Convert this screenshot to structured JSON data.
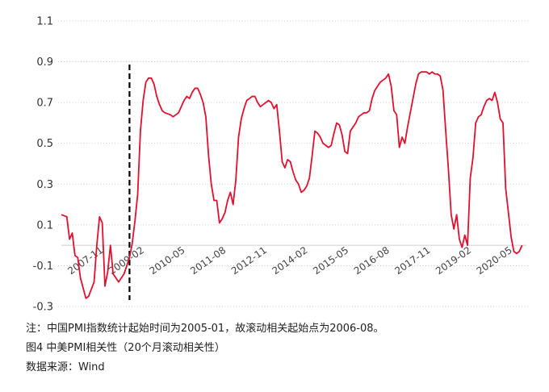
{
  "chart_data": {
    "type": "line",
    "y_ticks": [
      "1.1",
      "0.9",
      "0.7",
      "0.5",
      "0.3",
      "0.1",
      "-0.1",
      "-0.3"
    ],
    "ylim": [
      -0.3,
      1.1
    ],
    "x_ticks": [
      {
        "label": "2007-11",
        "date": "2007-11"
      },
      {
        "label": "2009-02",
        "date": "2009-02"
      },
      {
        "label": "2010-05",
        "date": "2010-05"
      },
      {
        "label": "2011-08",
        "date": "2011-08"
      },
      {
        "label": "2012-11",
        "date": "2012-11"
      },
      {
        "label": "2014-02",
        "date": "2014-02"
      },
      {
        "label": "2015-05",
        "date": "2015-05"
      },
      {
        "label": "2016-08",
        "date": "2016-08"
      },
      {
        "label": "2017-11",
        "date": "2017-11"
      },
      {
        "label": "2019-02",
        "date": "2019-02"
      },
      {
        "label": "2020-05",
        "date": "2020-05"
      }
    ],
    "xlim": [
      "2006-08",
      "2020-10"
    ],
    "grid": true,
    "marker_line_date": "2008-09",
    "series": [
      {
        "color": "#e0102f",
        "points": [
          [
            "2006-08",
            0.15
          ],
          [
            "2006-10",
            0.14
          ],
          [
            "2006-11",
            0.03
          ],
          [
            "2006-12",
            0.06
          ],
          [
            "2007-01",
            -0.05
          ],
          [
            "2007-02",
            -0.06
          ],
          [
            "2007-03",
            -0.16
          ],
          [
            "2007-05",
            -0.26
          ],
          [
            "2007-06",
            -0.25
          ],
          [
            "2007-08",
            -0.18
          ],
          [
            "2007-09",
            0.0
          ],
          [
            "2007-10",
            0.14
          ],
          [
            "2007-11",
            0.11
          ],
          [
            "2007-12",
            -0.2
          ],
          [
            "2008-01",
            -0.13
          ],
          [
            "2008-02",
            0.0
          ],
          [
            "2008-03",
            -0.14
          ],
          [
            "2008-05",
            -0.18
          ],
          [
            "2008-06",
            -0.16
          ],
          [
            "2008-07",
            -0.14
          ],
          [
            "2008-08",
            -0.1
          ],
          [
            "2008-09",
            -0.06
          ],
          [
            "2008-10",
            0.01
          ],
          [
            "2008-11",
            0.12
          ],
          [
            "2008-12",
            0.25
          ],
          [
            "2009-01",
            0.56
          ],
          [
            "2009-02",
            0.71
          ],
          [
            "2009-03",
            0.8
          ],
          [
            "2009-04",
            0.82
          ],
          [
            "2009-05",
            0.82
          ],
          [
            "2009-06",
            0.79
          ],
          [
            "2009-07",
            0.73
          ],
          [
            "2009-08",
            0.69
          ],
          [
            "2009-09",
            0.66
          ],
          [
            "2009-10",
            0.65
          ],
          [
            "2009-12",
            0.64
          ],
          [
            "2010-01",
            0.63
          ],
          [
            "2010-03",
            0.65
          ],
          [
            "2010-05",
            0.71
          ],
          [
            "2010-06",
            0.73
          ],
          [
            "2010-07",
            0.72
          ],
          [
            "2010-08",
            0.75
          ],
          [
            "2010-09",
            0.77
          ],
          [
            "2010-10",
            0.77
          ],
          [
            "2010-11",
            0.74
          ],
          [
            "2010-12",
            0.7
          ],
          [
            "2011-01",
            0.63
          ],
          [
            "2011-02",
            0.44
          ],
          [
            "2011-03",
            0.3
          ],
          [
            "2011-04",
            0.22
          ],
          [
            "2011-05",
            0.22
          ],
          [
            "2011-06",
            0.11
          ],
          [
            "2011-07",
            0.13
          ],
          [
            "2011-08",
            0.16
          ],
          [
            "2011-09",
            0.22
          ],
          [
            "2011-10",
            0.26
          ],
          [
            "2011-11",
            0.2
          ],
          [
            "2011-12",
            0.32
          ],
          [
            "2012-01",
            0.53
          ],
          [
            "2012-02",
            0.62
          ],
          [
            "2012-03",
            0.67
          ],
          [
            "2012-04",
            0.71
          ],
          [
            "2012-05",
            0.72
          ],
          [
            "2012-06",
            0.73
          ],
          [
            "2012-07",
            0.73
          ],
          [
            "2012-08",
            0.7
          ],
          [
            "2012-09",
            0.68
          ],
          [
            "2012-10",
            0.69
          ],
          [
            "2012-11",
            0.7
          ],
          [
            "2012-12",
            0.71
          ],
          [
            "2013-01",
            0.7
          ],
          [
            "2013-02",
            0.67
          ],
          [
            "2013-03",
            0.69
          ],
          [
            "2013-04",
            0.56
          ],
          [
            "2013-05",
            0.41
          ],
          [
            "2013-06",
            0.38
          ],
          [
            "2013-07",
            0.42
          ],
          [
            "2013-08",
            0.41
          ],
          [
            "2013-09",
            0.36
          ],
          [
            "2013-10",
            0.32
          ],
          [
            "2013-11",
            0.3
          ],
          [
            "2013-12",
            0.26
          ],
          [
            "2014-01",
            0.27
          ],
          [
            "2014-02",
            0.29
          ],
          [
            "2014-03",
            0.33
          ],
          [
            "2014-04",
            0.44
          ],
          [
            "2014-05",
            0.56
          ],
          [
            "2014-06",
            0.55
          ],
          [
            "2014-07",
            0.53
          ],
          [
            "2014-08",
            0.5
          ],
          [
            "2014-09",
            0.49
          ],
          [
            "2014-10",
            0.48
          ],
          [
            "2014-11",
            0.49
          ],
          [
            "2014-12",
            0.55
          ],
          [
            "2015-01",
            0.6
          ],
          [
            "2015-02",
            0.59
          ],
          [
            "2015-03",
            0.54
          ],
          [
            "2015-04",
            0.46
          ],
          [
            "2015-05",
            0.45
          ],
          [
            "2015-06",
            0.56
          ],
          [
            "2015-07",
            0.58
          ],
          [
            "2015-08",
            0.6
          ],
          [
            "2015-09",
            0.63
          ],
          [
            "2015-10",
            0.64
          ],
          [
            "2015-11",
            0.65
          ],
          [
            "2015-12",
            0.65
          ],
          [
            "2016-01",
            0.66
          ],
          [
            "2016-02",
            0.72
          ],
          [
            "2016-03",
            0.76
          ],
          [
            "2016-04",
            0.78
          ],
          [
            "2016-05",
            0.8
          ],
          [
            "2016-06",
            0.81
          ],
          [
            "2016-07",
            0.82
          ],
          [
            "2016-08",
            0.84
          ],
          [
            "2016-09",
            0.78
          ],
          [
            "2016-10",
            0.66
          ],
          [
            "2016-11",
            0.64
          ],
          [
            "2016-12",
            0.48
          ],
          [
            "2017-01",
            0.53
          ],
          [
            "2017-02",
            0.5
          ],
          [
            "2017-03",
            0.58
          ],
          [
            "2017-04",
            0.65
          ],
          [
            "2017-05",
            0.72
          ],
          [
            "2017-06",
            0.79
          ],
          [
            "2017-07",
            0.84
          ],
          [
            "2017-08",
            0.85
          ],
          [
            "2017-09",
            0.85
          ],
          [
            "2017-10",
            0.85
          ],
          [
            "2017-11",
            0.84
          ],
          [
            "2017-12",
            0.85
          ],
          [
            "2018-01",
            0.84
          ],
          [
            "2018-02",
            0.84
          ],
          [
            "2018-03",
            0.83
          ],
          [
            "2018-04",
            0.76
          ],
          [
            "2018-05",
            0.56
          ],
          [
            "2018-06",
            0.37
          ],
          [
            "2018-07",
            0.15
          ],
          [
            "2018-08",
            0.08
          ],
          [
            "2018-09",
            0.15
          ],
          [
            "2018-10",
            0.03
          ],
          [
            "2018-11",
            -0.01
          ],
          [
            "2018-12",
            0.05
          ],
          [
            "2019-01",
            0.0
          ],
          [
            "2019-02",
            0.33
          ],
          [
            "2019-03",
            0.43
          ],
          [
            "2019-04",
            0.6
          ],
          [
            "2019-05",
            0.63
          ],
          [
            "2019-06",
            0.64
          ],
          [
            "2019-07",
            0.68
          ],
          [
            "2019-08",
            0.71
          ],
          [
            "2019-09",
            0.72
          ],
          [
            "2019-10",
            0.71
          ],
          [
            "2019-11",
            0.75
          ],
          [
            "2019-12",
            0.7
          ],
          [
            "2020-01",
            0.62
          ],
          [
            "2020-02",
            0.6
          ],
          [
            "2020-03",
            0.28
          ],
          [
            "2020-04",
            0.16
          ],
          [
            "2020-05",
            0.04
          ],
          [
            "2020-06",
            -0.03
          ],
          [
            "2020-07",
            -0.04
          ],
          [
            "2020-08",
            -0.03
          ],
          [
            "2020-09",
            0.0
          ]
        ]
      }
    ]
  },
  "notes": {
    "note": "注：中国PMI指数统计起始时间为2005-01，故滚动相关起始点为2006-08。",
    "figure_title": "图4 中美PMI相关性（20个月滚动相关性）",
    "source": "数据来源：Wind"
  }
}
